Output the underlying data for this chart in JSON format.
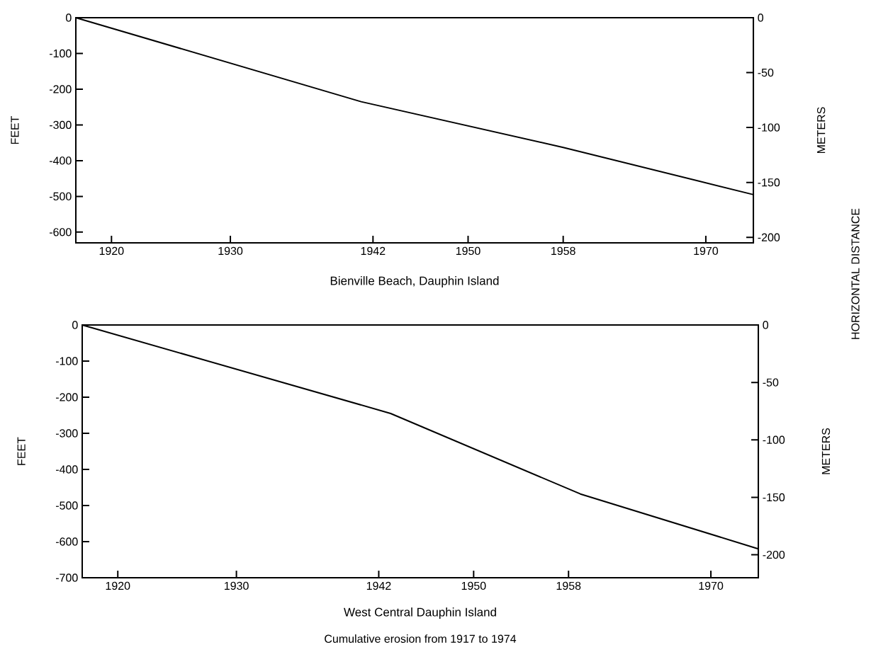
{
  "chart_data": [
    {
      "type": "line",
      "xlabel": "Bienville Beach, Dauphin Island",
      "ylabel": "FEET",
      "y2label": "METERS",
      "annotations": [
        "HORIZONTAL DISTANCE"
      ],
      "x": [
        1917,
        1941,
        1958,
        1974
      ],
      "values": [
        0,
        -235,
        -363,
        -495
      ],
      "color": "#000000",
      "xlim": [
        1917,
        1974
      ],
      "xticks": [
        1920,
        1930,
        1942,
        1950,
        1958,
        1970
      ],
      "ylim": [
        -630,
        0
      ],
      "yticks": [
        0,
        -100,
        -200,
        -300,
        -400,
        -500,
        -600
      ],
      "y2lim": [
        -205,
        0
      ],
      "y2ticks": [
        0,
        -50,
        -100,
        -150,
        -200
      ]
    },
    {
      "type": "line",
      "xlabel": "West Central Dauphin Island",
      "ylabel": "FEET",
      "y2label": "METERS",
      "annotations": [
        "Cumulative erosion from 1917 to 1974"
      ],
      "x": [
        1917,
        1943,
        1959,
        1974
      ],
      "values": [
        0,
        -245,
        -468,
        -620
      ],
      "color": "#000000",
      "xlim": [
        1917,
        1974
      ],
      "xticks": [
        1920,
        1930,
        1942,
        1950,
        1958,
        1970
      ],
      "ylim": [
        -700,
        0
      ],
      "yticks": [
        0,
        -100,
        -200,
        -300,
        -400,
        -500,
        -600,
        -700
      ],
      "y2lim": [
        -220,
        0
      ],
      "y2ticks": [
        0,
        -50,
        -100,
        -150,
        -200
      ]
    }
  ]
}
